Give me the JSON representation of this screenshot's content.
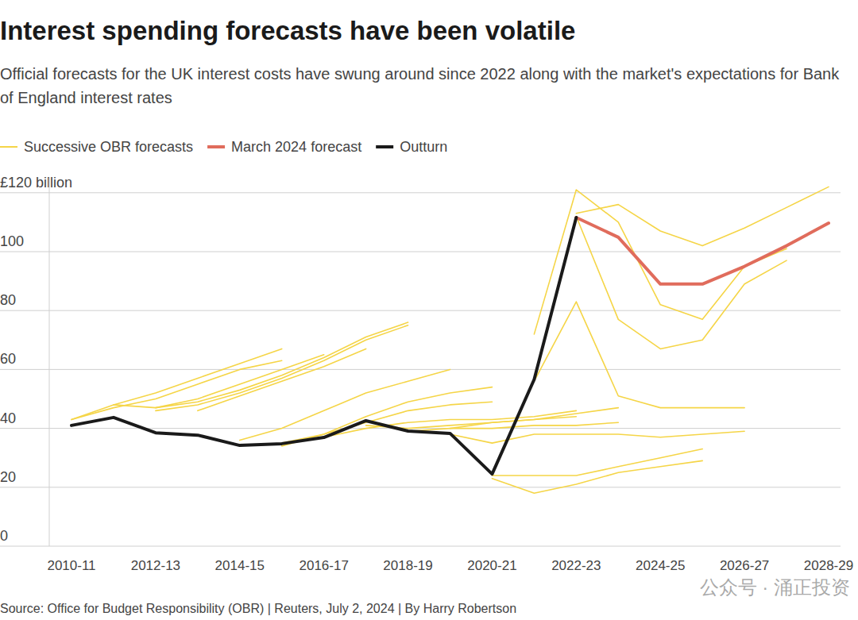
{
  "chart_data": {
    "type": "line",
    "title": "Interest spending forecasts have been volatile",
    "subtitle": "Official forecasts for the UK interest costs have swung around since 2022 along with the market's expectations for Bank of England interest rates",
    "source": "Source: Office for Budget Responsibility (OBR) | Reuters, July 2, 2024 | By Harry Robertson",
    "watermark": "公众号 · 涌正投资",
    "categories": [
      "2010-11",
      null,
      "2012-13",
      null,
      "2014-15",
      null,
      "2016-17",
      null,
      "2018-19",
      null,
      "2020-21",
      null,
      "2022-23",
      null,
      "2024-25",
      null,
      "2026-27",
      null,
      "2028-29"
    ],
    "ylim": [
      0,
      125
    ],
    "yticks": [
      0,
      20,
      40,
      60,
      80,
      100,
      {
        "value": 120,
        "label": "£120 billion"
      }
    ],
    "grid": true,
    "legend": "top",
    "series": [
      {
        "name": "Successive OBR forecasts",
        "color": "#f5d547",
        "values": [
          43,
          48,
          52,
          57,
          62,
          67,
          null,
          null,
          null,
          null,
          null,
          null,
          null,
          null,
          null,
          null,
          null,
          null,
          null
        ]
      },
      {
        "name": "Successive OBR forecasts",
        "color": "#f5d547",
        "values": [
          43,
          47,
          50,
          55,
          60,
          63,
          null,
          null,
          null,
          null,
          null,
          null,
          null,
          null,
          null,
          null,
          null,
          null,
          null
        ]
      },
      {
        "name": "Successive OBR forecasts",
        "color": "#f5d547",
        "values": [
          null,
          48,
          47,
          50,
          55,
          60,
          65,
          null,
          null,
          null,
          null,
          null,
          null,
          null,
          null,
          null,
          null,
          null,
          null
        ]
      },
      {
        "name": "Successive OBR forecasts",
        "color": "#f5d547",
        "values": [
          null,
          null,
          47,
          49,
          53,
          58,
          64,
          71,
          76,
          null,
          null,
          null,
          null,
          null,
          null,
          null,
          null,
          null,
          null
        ]
      },
      {
        "name": "Successive OBR forecasts",
        "color": "#f5d547",
        "values": [
          null,
          null,
          46,
          48,
          52,
          57,
          63,
          70,
          75,
          null,
          null,
          null,
          null,
          null,
          null,
          null,
          null,
          null,
          null
        ]
      },
      {
        "name": "Successive OBR forecasts",
        "color": "#f5d547",
        "values": [
          null,
          null,
          null,
          46,
          51,
          56,
          61,
          67,
          null,
          null,
          null,
          null,
          null,
          null,
          null,
          null,
          null,
          null,
          null
        ]
      },
      {
        "name": "Successive OBR forecasts",
        "color": "#f5d547",
        "values": [
          null,
          null,
          null,
          null,
          36,
          40,
          46,
          52,
          56,
          60,
          null,
          null,
          null,
          null,
          null,
          null,
          null,
          null,
          null
        ]
      },
      {
        "name": "Successive OBR forecasts",
        "color": "#f5d547",
        "values": [
          null,
          null,
          null,
          null,
          null,
          34,
          38,
          44,
          49,
          52,
          54,
          null,
          null,
          null,
          null,
          null,
          null,
          null,
          null
        ]
      },
      {
        "name": "Successive OBR forecasts",
        "color": "#f5d547",
        "values": [
          null,
          null,
          null,
          null,
          null,
          35,
          38,
          42,
          46,
          48,
          49,
          null,
          null,
          null,
          null,
          null,
          null,
          null,
          null
        ]
      },
      {
        "name": "Successive OBR forecasts",
        "color": "#f5d547",
        "values": [
          null,
          null,
          null,
          null,
          null,
          null,
          37,
          40,
          42,
          43,
          43,
          44,
          46,
          null,
          null,
          null,
          null,
          null,
          null
        ]
      },
      {
        "name": "Successive OBR forecasts",
        "color": "#f5d547",
        "values": [
          null,
          null,
          null,
          null,
          null,
          null,
          null,
          41,
          40,
          41,
          42,
          43,
          45,
          47,
          null,
          null,
          null,
          null,
          null
        ]
      },
      {
        "name": "Successive OBR forecasts",
        "color": "#f5d547",
        "values": [
          null,
          null,
          null,
          null,
          null,
          null,
          null,
          null,
          39,
          40,
          40,
          41,
          41,
          42,
          null,
          null,
          null,
          null,
          null
        ]
      },
      {
        "name": "Successive OBR forecasts",
        "color": "#f5d547",
        "values": [
          null,
          null,
          null,
          null,
          null,
          null,
          null,
          null,
          null,
          40,
          42,
          43,
          44,
          null,
          null,
          null,
          null,
          null,
          null
        ]
      },
      {
        "name": "Successive OBR forecasts",
        "color": "#f5d547",
        "values": [
          null,
          null,
          null,
          null,
          null,
          null,
          null,
          null,
          null,
          38,
          35,
          38,
          38,
          38,
          37,
          38,
          39,
          null,
          null
        ]
      },
      {
        "name": "Successive OBR forecasts",
        "color": "#f5d547",
        "values": [
          null,
          null,
          null,
          null,
          null,
          null,
          null,
          null,
          null,
          null,
          23,
          18,
          21,
          25,
          27,
          29,
          null,
          null,
          null
        ]
      },
      {
        "name": "Successive OBR forecasts",
        "color": "#f5d547",
        "values": [
          null,
          null,
          null,
          null,
          null,
          null,
          null,
          null,
          null,
          null,
          24,
          24,
          24,
          27,
          30,
          33,
          null,
          null,
          null
        ]
      },
      {
        "name": "Successive OBR forecasts",
        "color": "#f5d547",
        "values": [
          null,
          null,
          null,
          null,
          null,
          null,
          null,
          null,
          null,
          null,
          null,
          56,
          83,
          51,
          47,
          47,
          47,
          null,
          null
        ]
      },
      {
        "name": "Successive OBR forecasts",
        "color": "#f5d547",
        "values": [
          null,
          null,
          null,
          null,
          null,
          null,
          null,
          null,
          null,
          null,
          null,
          72,
          121,
          110,
          82,
          77,
          95,
          101,
          null
        ]
      },
      {
        "name": "Successive OBR forecasts",
        "color": "#f5d547",
        "values": [
          null,
          null,
          null,
          null,
          null,
          null,
          null,
          null,
          null,
          null,
          null,
          null,
          112,
          77,
          67,
          70,
          89,
          97,
          null
        ]
      },
      {
        "name": "Successive OBR forecasts",
        "color": "#f5d547",
        "values": [
          null,
          null,
          null,
          null,
          null,
          null,
          null,
          null,
          null,
          null,
          null,
          null,
          113,
          116,
          107,
          102,
          108,
          115,
          122
        ]
      },
      {
        "name": "March 2024 forecast",
        "color": "#e06c5c",
        "values": [
          null,
          null,
          null,
          null,
          null,
          null,
          null,
          null,
          null,
          null,
          null,
          null,
          111.6,
          104.9,
          89,
          89,
          95,
          102,
          109.7
        ]
      },
      {
        "name": "Outturn",
        "color": "#1a1a1a",
        "values": [
          41,
          43.7,
          38.5,
          37.7,
          34.2,
          34.8,
          36.9,
          42.6,
          39.1,
          38.3,
          24.5,
          56.6,
          111.6,
          null,
          null,
          null,
          null,
          null,
          null
        ]
      }
    ]
  }
}
